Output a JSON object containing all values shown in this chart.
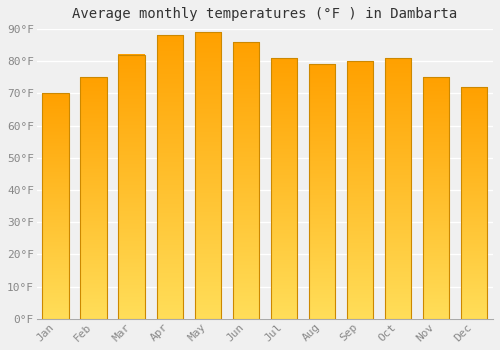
{
  "title": "Average monthly temperatures (°F ) in Dambarta",
  "months": [
    "Jan",
    "Feb",
    "Mar",
    "Apr",
    "May",
    "Jun",
    "Jul",
    "Aug",
    "Sep",
    "Oct",
    "Nov",
    "Dec"
  ],
  "values": [
    70,
    75,
    82,
    88,
    89,
    86,
    81,
    79,
    80,
    81,
    75,
    72
  ],
  "bar_color_bottom": "#FFD54F",
  "bar_color_top": "#FFA000",
  "bar_edge_color": "#CC8800",
  "ylim": [
    0,
    90
  ],
  "yticks": [
    0,
    10,
    20,
    30,
    40,
    50,
    60,
    70,
    80,
    90
  ],
  "ytick_labels": [
    "0°F",
    "10°F",
    "20°F",
    "30°F",
    "40°F",
    "50°F",
    "60°F",
    "70°F",
    "80°F",
    "90°F"
  ],
  "background_color": "#f0f0f0",
  "grid_color": "#ffffff",
  "title_fontsize": 10,
  "tick_fontsize": 8,
  "font_family": "monospace"
}
